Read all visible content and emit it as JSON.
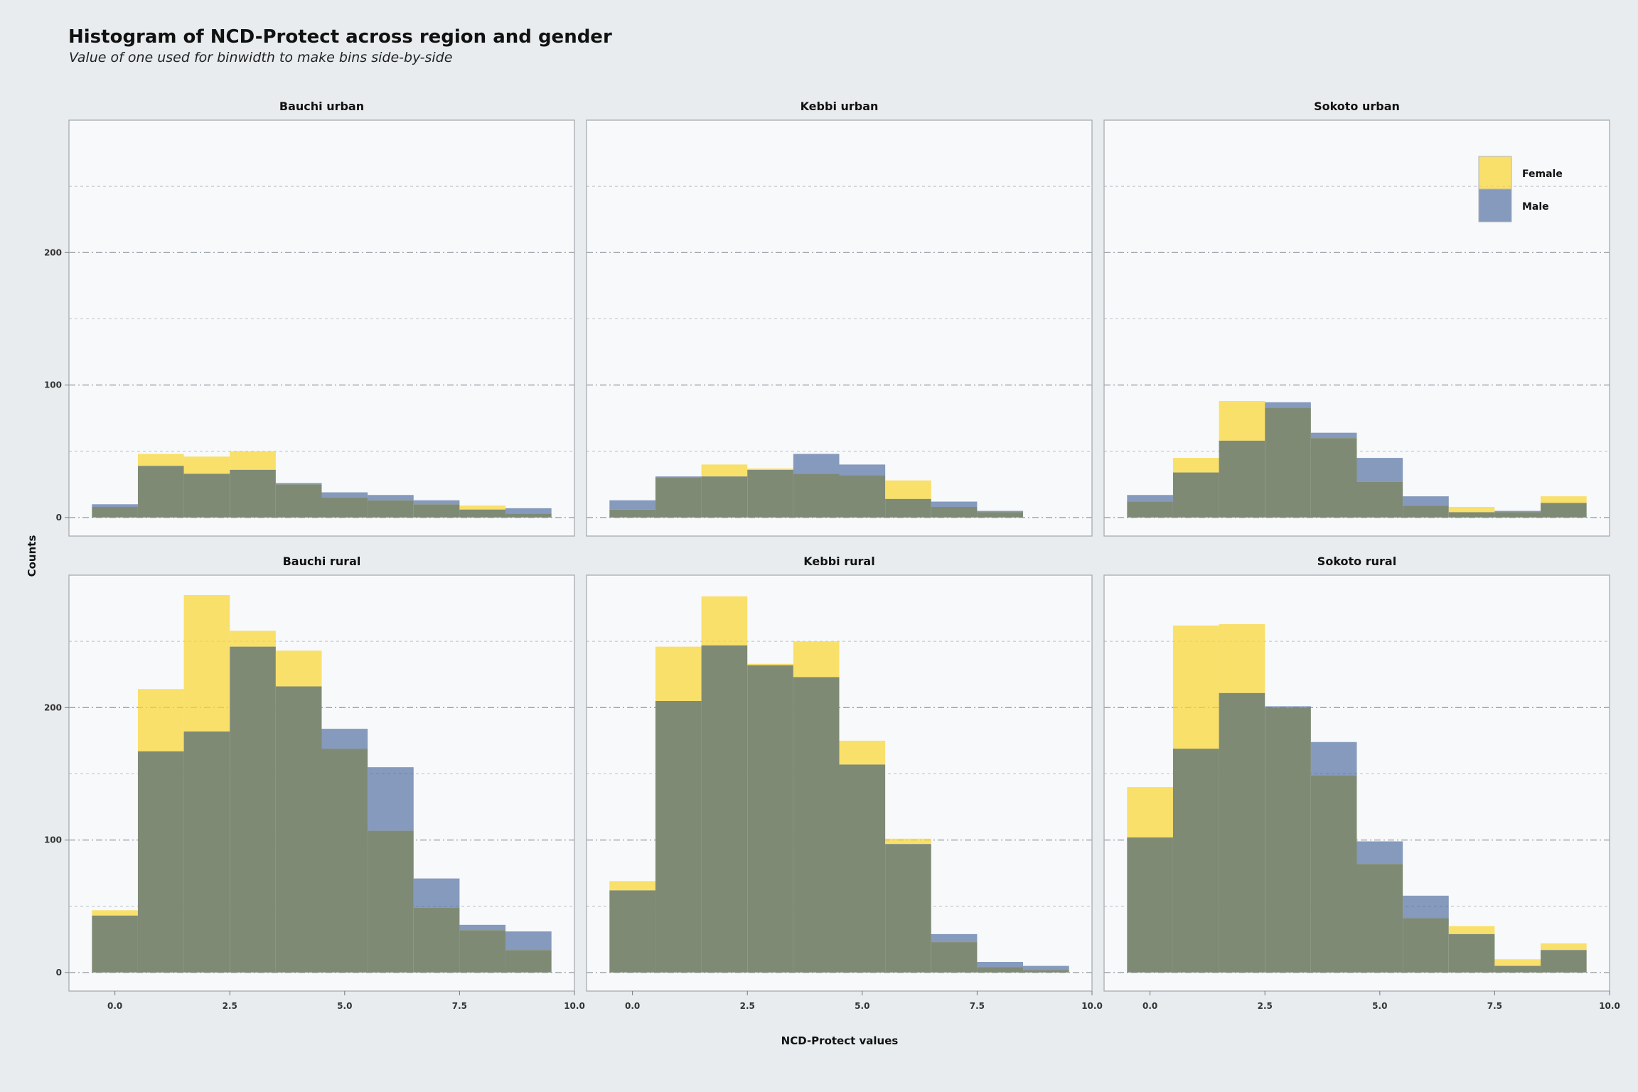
{
  "chart_data": {
    "type": "histogram",
    "title": "Histogram of NCD-Protect across region and gender",
    "subtitle": "Value of one used for binwidth to make bins side-by-side",
    "xlabel": "NCD-Protect values",
    "ylabel": "Counts",
    "x_ticks": [
      0,
      2.5,
      5,
      7.5,
      10
    ],
    "x_tick_labels": [
      "0.0",
      "2.5",
      "5.0",
      "7.5",
      "10.0"
    ],
    "y_ticks": [
      0,
      100,
      200
    ],
    "y_tick_labels": [
      "0",
      "100",
      "200"
    ],
    "xlim": [
      -1,
      10
    ],
    "ylim": [
      -14,
      300
    ],
    "bin_centers": [
      0,
      1,
      2,
      3,
      4,
      5,
      6,
      7,
      8,
      9
    ],
    "binwidth": 1,
    "grid": true,
    "legend": {
      "position": "top-right",
      "entries": [
        "Female",
        "Male"
      ]
    },
    "colors": {
      "female": "#f9d632",
      "male": "#3f5f94",
      "overlap": "#7f8a75"
    },
    "panels": [
      {
        "name": "Bauchi urban",
        "female": [
          8,
          48,
          46,
          50,
          25,
          15,
          13,
          10,
          9,
          3
        ],
        "male": [
          10,
          39,
          33,
          36,
          26,
          19,
          17,
          13,
          6,
          7
        ]
      },
      {
        "name": "Kebbi urban",
        "female": [
          6,
          30,
          40,
          37,
          33,
          32,
          28,
          8,
          4,
          0
        ],
        "male": [
          13,
          31,
          31,
          36,
          48,
          40,
          14,
          12,
          5,
          0
        ]
      },
      {
        "name": "Sokoto urban",
        "female": [
          12,
          45,
          88,
          83,
          60,
          27,
          9,
          8,
          4,
          16
        ],
        "male": [
          17,
          34,
          58,
          87,
          64,
          45,
          16,
          4,
          5,
          11
        ]
      },
      {
        "name": "Bauchi rural",
        "female": [
          47,
          214,
          285,
          258,
          243,
          169,
          107,
          49,
          32,
          17
        ],
        "male": [
          43,
          167,
          182,
          246,
          216,
          184,
          155,
          71,
          36,
          31
        ]
      },
      {
        "name": "Kebbi rural",
        "female": [
          69,
          246,
          284,
          233,
          250,
          175,
          101,
          23,
          4,
          2
        ],
        "male": [
          62,
          205,
          247,
          232,
          223,
          157,
          97,
          29,
          8,
          5
        ]
      },
      {
        "name": "Sokoto rural",
        "female": [
          140,
          262,
          263,
          200,
          149,
          82,
          41,
          35,
          10,
          22
        ],
        "male": [
          102,
          169,
          211,
          201,
          174,
          99,
          58,
          29,
          5,
          17
        ]
      }
    ]
  }
}
